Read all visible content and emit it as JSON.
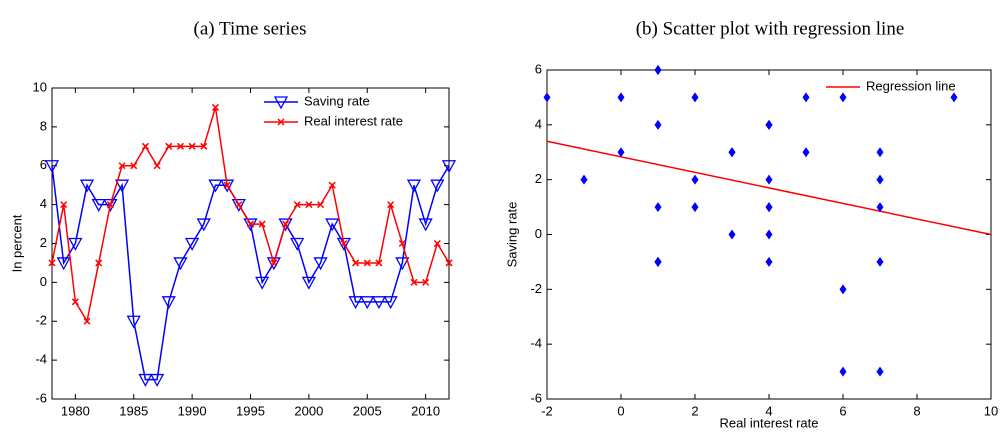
{
  "chart_data": [
    {
      "type": "line",
      "title": "(a) Time series",
      "ylabel": "In percent",
      "x": [
        1978,
        1979,
        1980,
        1981,
        1982,
        1983,
        1984,
        1985,
        1986,
        1987,
        1988,
        1989,
        1990,
        1991,
        1992,
        1993,
        1994,
        1995,
        1996,
        1997,
        1998,
        1999,
        2000,
        2001,
        2002,
        2003,
        2004,
        2005,
        2006,
        2007,
        2008,
        2009,
        2010,
        2011,
        2012
      ],
      "series": [
        {
          "name": "Saving rate",
          "color": "#0000ff",
          "marker": "triangle-down",
          "values": [
            6,
            1,
            2,
            5,
            4,
            4,
            5,
            -2,
            -5,
            -5,
            -1,
            1,
            2,
            3,
            5,
            5,
            4,
            3,
            0,
            1,
            3,
            2,
            0,
            1,
            3,
            2,
            -1,
            -1,
            -1,
            -1,
            1,
            5,
            3,
            5,
            6
          ]
        },
        {
          "name": "Real interest rate",
          "color": "#ff0000",
          "marker": "x",
          "values": [
            1,
            4,
            -1,
            -2,
            1,
            4,
            6,
            6,
            7,
            6,
            7,
            7,
            7,
            7,
            9,
            5,
            4,
            3,
            3,
            1,
            3,
            4,
            4,
            4,
            5,
            2,
            1,
            1,
            1,
            4,
            2,
            0,
            0,
            2,
            1
          ]
        }
      ],
      "xlim": [
        1978,
        2012
      ],
      "xticks": [
        1980,
        1985,
        1990,
        1995,
        2000,
        2005,
        2010
      ],
      "ylim": [
        -6,
        10
      ],
      "yticks": [
        -6,
        -4,
        -2,
        0,
        2,
        4,
        6,
        8,
        10
      ],
      "legend": "upper right"
    },
    {
      "type": "scatter",
      "title": "(b) Scatter plot with regression line",
      "xlabel": "Real interest rate",
      "ylabel": "Saving rate",
      "series": [
        {
          "color": "#0000ff",
          "marker": "diamond",
          "x": [
            1,
            4,
            -1,
            -2,
            1,
            4,
            6,
            6,
            7,
            6,
            7,
            7,
            7,
            7,
            9,
            5,
            4,
            3,
            3,
            1,
            3,
            4,
            4,
            4,
            5,
            2,
            1,
            1,
            1,
            4,
            2,
            0,
            0,
            2,
            1
          ],
          "values": [
            6,
            1,
            2,
            5,
            4,
            4,
            5,
            -2,
            -5,
            -5,
            -1,
            1,
            2,
            3,
            5,
            5,
            4,
            3,
            0,
            1,
            3,
            2,
            0,
            1,
            3,
            2,
            -1,
            -1,
            -1,
            -1,
            1,
            5,
            3,
            5,
            6
          ]
        }
      ],
      "regression_line": {
        "name": "Regression line",
        "color": "#ff0000",
        "x": [
          -2,
          10
        ],
        "values": [
          3.4,
          0
        ]
      },
      "xlim": [
        -2,
        10
      ],
      "xticks": [
        -2,
        0,
        2,
        4,
        6,
        8,
        10
      ],
      "ylim": [
        -6,
        6
      ],
      "yticks": [
        -6,
        -4,
        -2,
        0,
        2,
        4,
        6
      ],
      "legend": "upper right"
    }
  ]
}
